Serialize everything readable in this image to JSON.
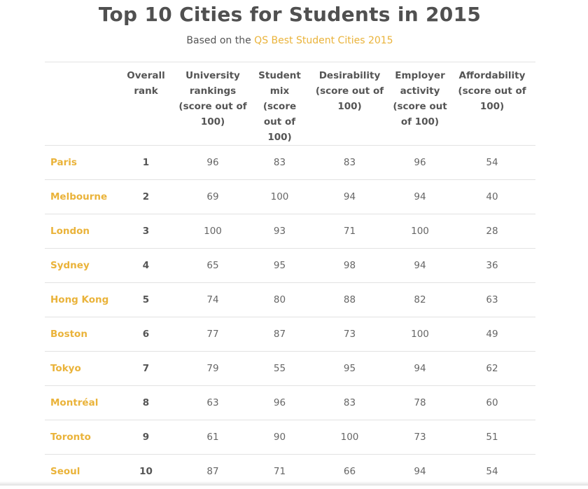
{
  "title": "Top 10 Cities for Students in 2015",
  "subtitle": {
    "prefix": "Based on the ",
    "link_text": "QS Best Student Cities 2015"
  },
  "colors": {
    "accent": "#eab33a",
    "text": "#555555",
    "border": "#e2e2e2"
  },
  "table": {
    "headers": [
      "",
      "Overall rank",
      "University rankings (score out of 100)",
      "Student mix (score out of 100)",
      "Desirability (score out of 100)",
      "Employer activity (score out of 100)",
      "Affordability (score out of 100)"
    ],
    "rows": [
      {
        "city": "Paris",
        "rank": "1",
        "university": "96",
        "student_mix": "83",
        "desirability": "83",
        "employer": "96",
        "affordability": "54"
      },
      {
        "city": "Melbourne",
        "rank": "2",
        "university": "69",
        "student_mix": "100",
        "desirability": "94",
        "employer": "94",
        "affordability": "40"
      },
      {
        "city": "London",
        "rank": "3",
        "university": "100",
        "student_mix": "93",
        "desirability": "71",
        "employer": "100",
        "affordability": "28"
      },
      {
        "city": "Sydney",
        "rank": "4",
        "university": "65",
        "student_mix": "95",
        "desirability": "98",
        "employer": "94",
        "affordability": "36"
      },
      {
        "city": "Hong Kong",
        "rank": "5",
        "university": "74",
        "student_mix": "80",
        "desirability": "88",
        "employer": "82",
        "affordability": "63"
      },
      {
        "city": "Boston",
        "rank": "6",
        "university": "77",
        "student_mix": "87",
        "desirability": "73",
        "employer": "100",
        "affordability": "49"
      },
      {
        "city": "Tokyo",
        "rank": "7",
        "university": "79",
        "student_mix": "55",
        "desirability": "95",
        "employer": "94",
        "affordability": "62"
      },
      {
        "city": "Montréal",
        "rank": "8",
        "university": "63",
        "student_mix": "96",
        "desirability": "83",
        "employer": "78",
        "affordability": "60"
      },
      {
        "city": "Toronto",
        "rank": "9",
        "university": "61",
        "student_mix": "90",
        "desirability": "100",
        "employer": "73",
        "affordability": "51"
      },
      {
        "city": "Seoul",
        "rank": "10",
        "university": "87",
        "student_mix": "71",
        "desirability": "66",
        "employer": "94",
        "affordability": "54"
      }
    ]
  }
}
